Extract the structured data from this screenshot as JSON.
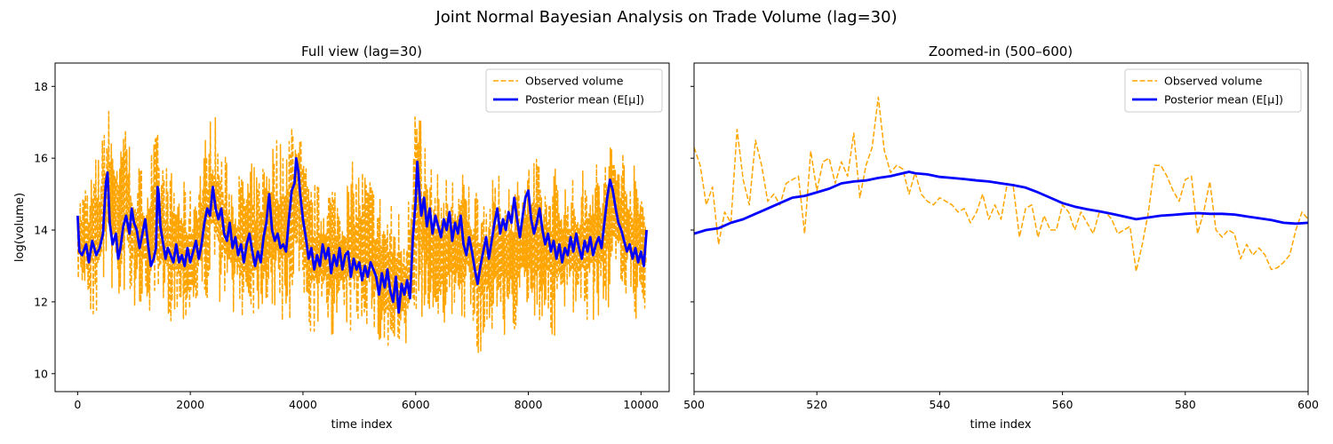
{
  "figure": {
    "suptitle": "Joint Normal Bayesian Analysis on Trade Volume (lag=30)",
    "ylabel": "log(volume)"
  },
  "colors": {
    "observed": "#FFA500",
    "posterior": "#0000FF"
  },
  "chart_data": [
    {
      "type": "line",
      "title": "Full view (lag=30)",
      "xlabel": "time index",
      "ylabel": "log(volume)",
      "xlim": [
        -400,
        10500
      ],
      "ylim": [
        9.5,
        18.65
      ],
      "xticks": [
        0,
        2000,
        4000,
        6000,
        8000,
        10000
      ],
      "xtick_labels": [
        "0",
        "2000",
        "4000",
        "6000",
        "8000",
        "10000"
      ],
      "yticks": [
        10,
        12,
        14,
        16,
        18
      ],
      "ytick_labels": [
        "10",
        "12",
        "14",
        "16",
        "18"
      ],
      "grid": false,
      "legend": {
        "position": "upper right",
        "entries": [
          "Observed volume",
          "Posterior mean (E[μ])"
        ]
      },
      "series": [
        {
          "name": "Observed volume",
          "style": "dashed",
          "x": [
            0,
            150,
            300,
            450,
            530,
            700,
            850,
            1000,
            1200,
            1400,
            1600,
            1800,
            2000,
            2200,
            2400,
            2600,
            2800,
            3000,
            3200,
            3400,
            3600,
            3800,
            3920,
            4100,
            4300,
            4500,
            4700,
            4900,
            5100,
            5300,
            5500,
            5700,
            5850,
            6000,
            6100,
            6300,
            6500,
            6700,
            6900,
            7100,
            7300,
            7500,
            7700,
            7900,
            8100,
            8300,
            8500,
            8700,
            8900,
            9100,
            9300,
            9500,
            9700,
            9900,
            10100
          ],
          "lows": [
            12.6,
            11.8,
            11.4,
            11.9,
            12.4,
            11.9,
            12.2,
            11.9,
            11.6,
            11.2,
            11.4,
            11.6,
            11.3,
            11.7,
            12.3,
            11.8,
            11.7,
            11.4,
            11.7,
            11.8,
            11.3,
            11.4,
            11.9,
            10.9,
            11.2,
            11.0,
            11.1,
            10.9,
            11.4,
            10.7,
            10.2,
            10.1,
            9.9,
            11.2,
            11.6,
            11.2,
            11.4,
            11.0,
            11.6,
            10.4,
            11.0,
            11.2,
            10.9,
            11.3,
            11.2,
            11.4,
            10.7,
            11.7,
            11.2,
            11.4,
            11.5,
            11.9,
            12.1,
            11.4,
            11.5
          ],
          "highs": [
            15.0,
            15.5,
            16.1,
            16.7,
            17.7,
            16.8,
            17.6,
            16.0,
            15.8,
            16.9,
            15.8,
            15.5,
            15.2,
            16.3,
            17.6,
            16.2,
            15.5,
            16.0,
            15.7,
            16.8,
            16.7,
            17.6,
            17.2,
            15.5,
            15.3,
            15.7,
            15.2,
            16.0,
            15.9,
            15.4,
            14.9,
            14.8,
            14.7,
            18.25,
            17.0,
            15.7,
            15.5,
            15.8,
            15.6,
            15.5,
            15.3,
            15.6,
            15.6,
            15.9,
            16.2,
            15.5,
            16.0,
            15.4,
            15.6,
            16.2,
            15.9,
            17.0,
            16.4,
            15.8,
            15.6
          ]
        },
        {
          "name": "Posterior mean (E[μ])",
          "style": "solid",
          "x": [
            0,
            30,
            80,
            150,
            200,
            260,
            330,
            390,
            450,
            500,
            530,
            570,
            620,
            680,
            720,
            760,
            810,
            860,
            920,
            960,
            1000,
            1050,
            1100,
            1150,
            1200,
            1250,
            1300,
            1350,
            1390,
            1420,
            1440,
            1470,
            1520,
            1560,
            1600,
            1650,
            1700,
            1750,
            1800,
            1850,
            1900,
            1950,
            2000,
            2050,
            2100,
            2150,
            2200,
            2250,
            2300,
            2350,
            2400,
            2450,
            2500,
            2550,
            2600,
            2650,
            2700,
            2750,
            2800,
            2850,
            2900,
            2950,
            3000,
            3050,
            3100,
            3150,
            3200,
            3250,
            3300,
            3350,
            3400,
            3450,
            3500,
            3550,
            3600,
            3650,
            3700,
            3750,
            3800,
            3850,
            3880,
            3920,
            3950,
            4000,
            4050,
            4100,
            4150,
            4200,
            4250,
            4300,
            4350,
            4400,
            4450,
            4500,
            4550,
            4600,
            4650,
            4700,
            4750,
            4800,
            4850,
            4900,
            4950,
            5000,
            5050,
            5100,
            5150,
            5200,
            5250,
            5300,
            5350,
            5400,
            5450,
            5500,
            5550,
            5600,
            5650,
            5700,
            5750,
            5800,
            5850,
            5900,
            5950,
            6000,
            6030,
            6060,
            6100,
            6150,
            6200,
            6250,
            6300,
            6350,
            6400,
            6450,
            6500,
            6550,
            6600,
            6650,
            6700,
            6750,
            6800,
            6850,
            6900,
            6950,
            7000,
            7050,
            7100,
            7150,
            7200,
            7250,
            7300,
            7350,
            7400,
            7450,
            7500,
            7550,
            7600,
            7650,
            7700,
            7750,
            7800,
            7850,
            7900,
            7950,
            8000,
            8050,
            8100,
            8150,
            8200,
            8250,
            8300,
            8350,
            8400,
            8450,
            8500,
            8550,
            8600,
            8650,
            8700,
            8750,
            8800,
            8850,
            8900,
            8950,
            9000,
            9050,
            9100,
            9150,
            9200,
            9250,
            9300,
            9350,
            9400,
            9450,
            9500,
            9550,
            9600,
            9650,
            9700,
            9750,
            9800,
            9850,
            9900,
            9950,
            10000,
            10050,
            10100
          ],
          "y": [
            14.4,
            13.4,
            13.3,
            13.6,
            13.1,
            13.7,
            13.3,
            13.5,
            13.9,
            15.3,
            15.6,
            14.2,
            13.6,
            13.9,
            13.2,
            13.5,
            14.1,
            14.4,
            13.9,
            14.6,
            14.2,
            14.0,
            13.5,
            13.9,
            14.3,
            13.6,
            13.0,
            13.2,
            13.5,
            15.2,
            15.0,
            14.1,
            13.6,
            13.2,
            13.5,
            13.3,
            13.1,
            13.6,
            13.1,
            13.3,
            13.0,
            13.5,
            13.1,
            13.4,
            13.7,
            13.2,
            13.6,
            14.2,
            14.6,
            14.4,
            15.2,
            14.6,
            14.3,
            14.6,
            13.9,
            13.7,
            14.2,
            13.5,
            13.8,
            13.3,
            13.6,
            13.1,
            13.6,
            13.9,
            13.4,
            13.0,
            13.4,
            13.1,
            13.8,
            14.2,
            15.0,
            14.0,
            13.7,
            13.9,
            13.5,
            13.6,
            13.4,
            14.3,
            15.1,
            15.3,
            16.0,
            15.6,
            15.0,
            14.3,
            13.8,
            13.2,
            13.5,
            12.9,
            13.3,
            13.0,
            13.6,
            13.2,
            13.5,
            12.8,
            13.3,
            13.0,
            13.5,
            12.9,
            13.3,
            13.4,
            12.7,
            13.2,
            12.9,
            13.1,
            12.6,
            13.0,
            12.7,
            13.1,
            12.9,
            12.7,
            12.2,
            12.8,
            12.4,
            12.9,
            12.3,
            12.0,
            12.7,
            11.7,
            12.5,
            12.2,
            12.6,
            12.1,
            13.8,
            14.8,
            15.9,
            15.2,
            14.4,
            14.9,
            14.1,
            14.6,
            13.9,
            14.4,
            14.1,
            13.8,
            14.3,
            14.0,
            14.5,
            13.7,
            14.2,
            13.9,
            14.4,
            13.6,
            13.3,
            13.8,
            13.4,
            12.9,
            12.5,
            13.0,
            13.4,
            13.8,
            13.2,
            13.7,
            14.2,
            14.6,
            13.9,
            14.3,
            14.0,
            14.5,
            14.2,
            14.9,
            14.3,
            13.8,
            14.4,
            14.9,
            15.1,
            14.3,
            13.9,
            14.2,
            14.6,
            14.0,
            13.6,
            13.9,
            13.4,
            13.7,
            13.2,
            13.6,
            13.1,
            13.5,
            13.3,
            13.8,
            13.4,
            13.9,
            13.5,
            13.2,
            13.7,
            13.4,
            13.8,
            13.3,
            13.6,
            13.8,
            13.5,
            14.2,
            14.9,
            15.4,
            15.1,
            14.6,
            14.2,
            14.0,
            13.7,
            13.4,
            13.6,
            13.2,
            13.5,
            13.1,
            13.4,
            13.0,
            14.0
          ]
        }
      ]
    },
    {
      "type": "line",
      "title": "Zoomed-in (500–600)",
      "xlabel": "time index",
      "ylabel": "",
      "xlim": [
        500,
        600
      ],
      "ylim": [
        9.5,
        18.65
      ],
      "xticks": [
        500,
        520,
        540,
        560,
        580,
        600
      ],
      "xtick_labels": [
        "500",
        "520",
        "540",
        "560",
        "580",
        "600"
      ],
      "yticks": [
        10,
        12,
        14,
        16,
        18
      ],
      "ytick_labels": [
        "",
        "",
        "",
        "",
        ""
      ],
      "grid": false,
      "legend": {
        "position": "upper right",
        "entries": [
          "Observed volume",
          "Posterior mean (E[μ])"
        ]
      },
      "series": [
        {
          "name": "Observed volume",
          "style": "dashed",
          "x": [
            500,
            501,
            502,
            503,
            504,
            505,
            506,
            507,
            508,
            509,
            510,
            511,
            512,
            513,
            514,
            515,
            516,
            517,
            518,
            519,
            520,
            521,
            522,
            523,
            524,
            525,
            526,
            527,
            528,
            529,
            530,
            531,
            532,
            533,
            534,
            535,
            536,
            537,
            538,
            539,
            540,
            541,
            542,
            543,
            544,
            545,
            546,
            547,
            548,
            549,
            550,
            551,
            552,
            553,
            554,
            555,
            556,
            557,
            558,
            559,
            560,
            561,
            562,
            563,
            564,
            565,
            566,
            567,
            568,
            569,
            570,
            571,
            572,
            573,
            574,
            575,
            576,
            577,
            578,
            579,
            580,
            581,
            582,
            583,
            584,
            585,
            586,
            587,
            588,
            589,
            590,
            591,
            592,
            593,
            594,
            595,
            596,
            597,
            598,
            599,
            600
          ],
          "y": [
            16.3,
            15.8,
            14.7,
            15.2,
            13.6,
            14.5,
            14.2,
            16.8,
            15.4,
            14.7,
            16.5,
            15.8,
            14.8,
            15.0,
            14.7,
            15.3,
            15.4,
            15.5,
            13.9,
            16.2,
            15.1,
            15.9,
            16.0,
            15.3,
            15.9,
            15.5,
            16.7,
            14.9,
            15.8,
            16.3,
            17.7,
            16.2,
            15.6,
            15.8,
            15.7,
            15.0,
            15.6,
            15.0,
            14.8,
            14.7,
            14.9,
            14.8,
            14.7,
            14.5,
            14.6,
            14.2,
            14.5,
            15.0,
            14.3,
            14.7,
            14.3,
            15.3,
            15.2,
            13.8,
            14.6,
            14.7,
            13.8,
            14.4,
            14.0,
            14.0,
            14.7,
            14.5,
            14.0,
            14.5,
            14.2,
            13.9,
            14.5,
            14.5,
            14.3,
            13.9,
            14.0,
            14.1,
            12.85,
            13.6,
            14.5,
            15.8,
            15.8,
            15.5,
            15.1,
            14.8,
            15.4,
            15.5,
            13.9,
            14.5,
            15.35,
            14.0,
            13.8,
            14.0,
            13.9,
            13.2,
            13.6,
            13.3,
            13.5,
            13.3,
            12.9,
            12.95,
            13.1,
            13.3,
            14.0,
            14.5,
            14.3
          ]
        },
        {
          "name": "Posterior mean (E[μ])",
          "style": "solid",
          "x": [
            500,
            502,
            504,
            506,
            508,
            510,
            512,
            514,
            516,
            518,
            520,
            522,
            524,
            526,
            528,
            530,
            532,
            534,
            535,
            536,
            538,
            540,
            542,
            544,
            546,
            548,
            550,
            552,
            554,
            556,
            558,
            560,
            562,
            564,
            566,
            568,
            570,
            572,
            574,
            576,
            578,
            580,
            582,
            584,
            586,
            588,
            590,
            592,
            594,
            596,
            598,
            600
          ],
          "y": [
            13.9,
            14.0,
            14.05,
            14.2,
            14.3,
            14.45,
            14.6,
            14.75,
            14.9,
            14.95,
            15.05,
            15.15,
            15.3,
            15.35,
            15.38,
            15.45,
            15.5,
            15.58,
            15.62,
            15.58,
            15.55,
            15.48,
            15.45,
            15.42,
            15.38,
            15.35,
            15.3,
            15.25,
            15.18,
            15.05,
            14.9,
            14.75,
            14.65,
            14.58,
            14.52,
            14.45,
            14.38,
            14.3,
            14.35,
            14.4,
            14.42,
            14.45,
            14.47,
            14.45,
            14.45,
            14.43,
            14.38,
            14.33,
            14.28,
            14.2,
            14.18,
            14.2
          ]
        }
      ]
    }
  ]
}
